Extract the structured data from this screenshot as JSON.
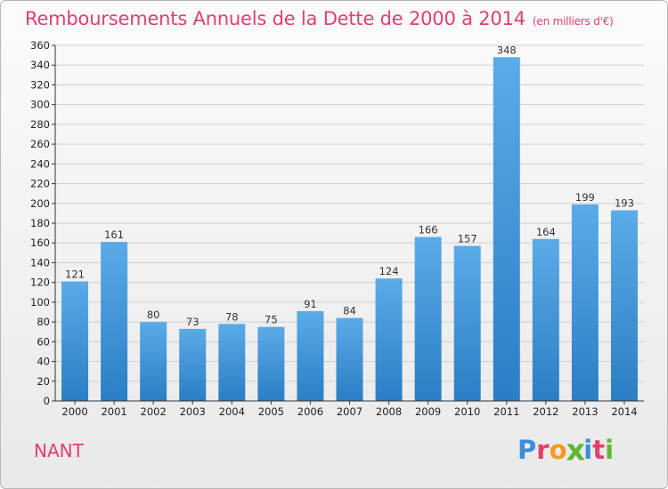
{
  "header": {
    "title": "Remboursements Annuels de la Dette de 2000 à 2014",
    "subtitle": "(en milliers d'€)"
  },
  "footer": {
    "commune": "NANT",
    "logo_letters": [
      "P",
      "r",
      "o",
      "x",
      "i",
      "t",
      "i"
    ],
    "logo_colors": [
      "#3a8fd8",
      "#e0406e",
      "#f29b1d",
      "#5fb832",
      "#3a8fd8",
      "#e0406e",
      "#5fb832"
    ]
  },
  "colors": {
    "bar_top": "#5aabe8",
    "bar_bottom": "#2b7ec4",
    "title": "#e0406e",
    "grid": "#cfcfcf",
    "axis": "#333333"
  },
  "chart_data": {
    "type": "bar",
    "title": "Remboursements Annuels de la Dette de 2000 à 2014",
    "subtitle": "(en milliers d'€)",
    "categories": [
      "2000",
      "2001",
      "2002",
      "2003",
      "2004",
      "2005",
      "2006",
      "2007",
      "2008",
      "2009",
      "2010",
      "2011",
      "2012",
      "2013",
      "2014"
    ],
    "values": [
      121,
      161,
      80,
      73,
      78,
      75,
      91,
      84,
      124,
      166,
      157,
      348,
      164,
      199,
      193
    ],
    "ylim": [
      0,
      360
    ],
    "ytick_step": 20,
    "grid": true,
    "data_labels": true
  }
}
